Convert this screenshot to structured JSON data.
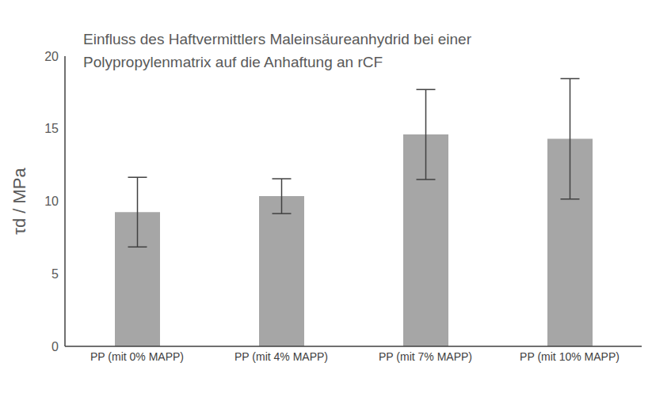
{
  "chart_data": {
    "type": "bar",
    "title": "Einfluss des Haftvermittlers Maleinsäureanhydrid bei einer\nPolypropylenmatrix auf die Anhaftung an rCF",
    "y_label": "τd / MPa",
    "categories": [
      "PP (mit 0% MAPP)",
      "PP (mit 4% MAPP)",
      "PP (mit 7% MAPP)",
      "PP (mit 10% MAPP)"
    ],
    "values": [
      9.25,
      10.35,
      14.6,
      14.3
    ],
    "errors": [
      2.4,
      1.2,
      3.1,
      4.15
    ],
    "color": "#a6a6a6",
    "ylim": [
      0,
      20
    ],
    "yticks": [
      0,
      5,
      10,
      15,
      20
    ],
    "grid": false
  }
}
